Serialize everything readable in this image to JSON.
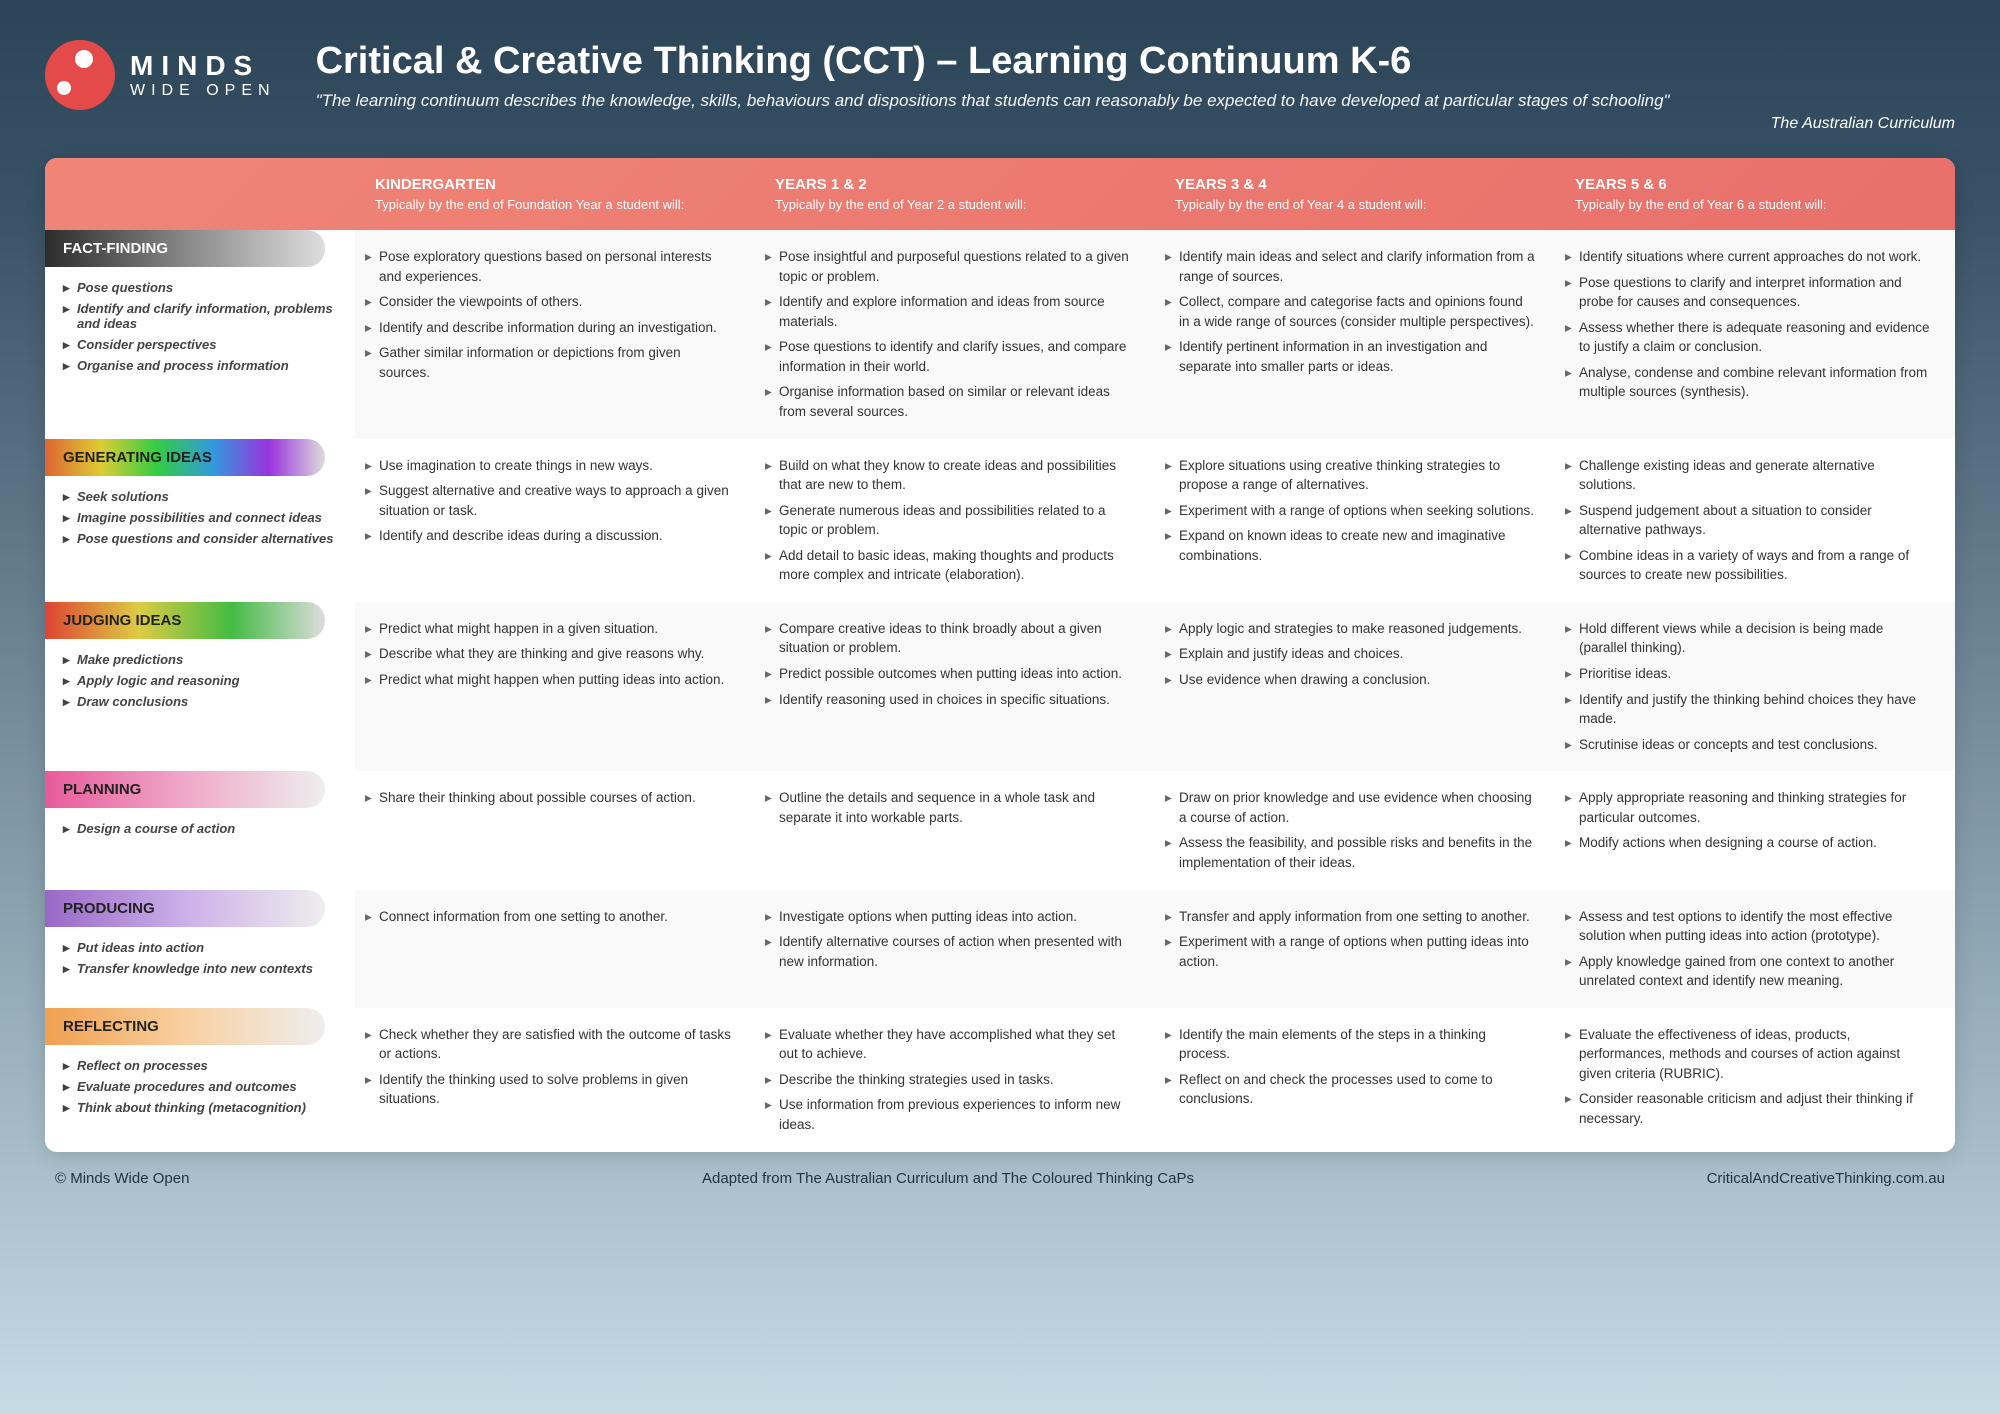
{
  "brand": {
    "top": "MINDS",
    "bottom": "WIDE OPEN"
  },
  "title": "Critical & Creative Thinking (CCT) – Learning Continuum K-6",
  "subtitle": "\"The learning continuum describes the knowledge, skills, behaviours and dispositions that students can reasonably be expected to have developed at particular stages of schooling\"",
  "attribution": "The Australian Curriculum",
  "columns": [
    {
      "title": "KINDERGARTEN",
      "sub": "Typically by the end of Foundation Year a student will:"
    },
    {
      "title": "YEARS 1 & 2",
      "sub": "Typically by the end of Year 2 a student will:"
    },
    {
      "title": "YEARS 3 & 4",
      "sub": "Typically by the end of Year 4 a student will:"
    },
    {
      "title": "YEARS 5 & 6",
      "sub": "Typically by the end of Year 6 a student will:"
    }
  ],
  "rows": [
    {
      "label": "FACT-FINDING",
      "band": "band-grey",
      "subitems": [
        "Pose questions",
        "Identify and clarify information, problems and ideas",
        "Consider perspectives",
        "Organise and process information"
      ],
      "cells": [
        [
          "Pose exploratory questions based on personal interests and experiences.",
          "Consider the viewpoints of others.",
          "Identify and describe information during an investigation.",
          "Gather similar information or depictions from given sources."
        ],
        [
          "Pose insightful and purposeful questions related to a given topic or problem.",
          "Identify and explore information and ideas from source materials.",
          "Pose questions to identify and clarify issues, and compare information in their world.",
          "Organise information based on similar or relevant ideas from several sources."
        ],
        [
          "Identify main ideas and select and clarify information from a range of sources.",
          "Collect, compare and categorise facts and opinions found in a wide range of sources (consider multiple perspectives).",
          "Identify pertinent information in an investigation and separate into smaller parts or ideas."
        ],
        [
          "Identify situations where current approaches do not work.",
          "Pose questions to clarify and interpret information and probe for causes and consequences.",
          "Assess whether there is adequate reasoning and evidence to justify a claim or conclusion.",
          "Analyse, condense and combine relevant information from multiple sources (synthesis)."
        ]
      ]
    },
    {
      "label": "GENERATING IDEAS",
      "band": "band-rainbow",
      "labelClass": "label-black",
      "subitems": [
        "Seek solutions",
        "Imagine possibilities and connect ideas",
        "Pose questions and consider alternatives"
      ],
      "cells": [
        [
          "Use imagination to create things in new ways.",
          "Suggest alternative and creative ways to approach a given situation or task.",
          "Identify and describe ideas during a discussion."
        ],
        [
          "Build on what they know to create ideas and possibilities that are new to them.",
          "Generate numerous ideas and possibilities related to a topic or problem.",
          "Add detail to basic ideas, making thoughts and products more complex and intricate (elaboration)."
        ],
        [
          "Explore situations using creative thinking strategies to propose a range of alternatives.",
          "Experiment with a range of options when seeking solutions.",
          "Expand on known ideas to create new and imaginative combinations."
        ],
        [
          "Challenge existing ideas and generate alternative solutions.",
          "Suspend judgement about a situation to consider alternative pathways.",
          "Combine ideas in a variety of ways and from a range of sources to create new possibilities."
        ]
      ]
    },
    {
      "label": "JUDGING IDEAS",
      "band": "band-green",
      "labelClass": "label-black",
      "subitems": [
        "Make predictions",
        "Apply logic and reasoning",
        "Draw conclusions"
      ],
      "cells": [
        [
          "Predict what might happen in a given situation.",
          "Describe what they are thinking and give reasons why.",
          "Predict what might happen when putting ideas into action."
        ],
        [
          "Compare creative ideas to think broadly about a given situation or problem.",
          "Predict possible outcomes when putting ideas into action.",
          "Identify reasoning used in choices in specific situations."
        ],
        [
          "Apply logic and strategies to make reasoned judgements.",
          "Explain and justify ideas and choices.",
          "Use evidence when drawing a conclusion."
        ],
        [
          "Hold different views while a decision is being made (parallel thinking).",
          "Prioritise ideas.",
          "Identify and justify the thinking behind choices they have made.",
          "Scrutinise ideas or concepts and test conclusions."
        ]
      ]
    },
    {
      "label": "PLANNING",
      "band": "band-pink",
      "labelClass": "label-black",
      "subitems": [
        "Design a course of action"
      ],
      "cells": [
        [
          "Share their thinking about possible courses of action."
        ],
        [
          "Outline the details and sequence in a whole task and separate it into workable parts."
        ],
        [
          "Draw on prior knowledge and use evidence when choosing a course of action.",
          "Assess the feasibility, and possible risks and benefits in the implementation of their ideas."
        ],
        [
          "Apply appropriate reasoning and thinking strategies for particular outcomes.",
          "Modify actions when designing a course of action."
        ]
      ]
    },
    {
      "label": "PRODUCING",
      "band": "band-purple",
      "labelClass": "label-black",
      "subitems": [
        "Put ideas into action",
        "Transfer knowledge into new contexts"
      ],
      "cells": [
        [
          "Connect information from one setting to another."
        ],
        [
          "Investigate options when putting ideas into action.",
          "Identify alternative courses of action when presented with new information."
        ],
        [
          "Transfer and apply information from one setting to another.",
          "Experiment with a range of options when putting ideas into action."
        ],
        [
          "Assess and test options to identify the most effective solution when putting ideas into action (prototype).",
          "Apply knowledge gained from one context to another unrelated context and identify new meaning."
        ]
      ]
    },
    {
      "label": "REFLECTING",
      "band": "band-orange",
      "labelClass": "label-black",
      "subitems": [
        "Reflect on processes",
        "Evaluate procedures and outcomes",
        "Think about thinking (metacognition)"
      ],
      "cells": [
        [
          "Check whether they are satisfied with the outcome of tasks or actions.",
          "Identify the thinking used to solve problems in given situations."
        ],
        [
          "Evaluate whether they have accomplished what they set out to achieve.",
          "Describe the thinking strategies used in tasks.",
          "Use information from previous experiences to inform new ideas."
        ],
        [
          "Identify the main elements of the steps in a thinking process.",
          "Reflect on and check the processes used to come to conclusions."
        ],
        [
          "Evaluate the effectiveness of ideas, products, performances, methods and courses of action against given criteria (RUBRIC).",
          "Consider reasonable criticism and adjust their thinking if necessary."
        ]
      ]
    }
  ],
  "footer": {
    "left": "© Minds Wide Open",
    "center": "Adapted from The Australian Curriculum and The Coloured Thinking CaPs",
    "right": "CriticalAndCreativeThinking.com.au"
  }
}
